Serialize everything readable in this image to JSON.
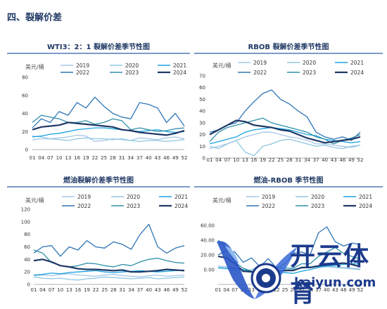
{
  "section_title": "四、裂解价差",
  "watermark": {
    "cn": "开云体育",
    "en": "kaiyun.com"
  },
  "colors": {
    "2019": "#a6c6e8",
    "2020": "#8fc8e0",
    "2021": "#1aa3e0",
    "2022": "#2e75b6",
    "2023": "#2e8fa8",
    "2024": "#1f3864",
    "axis": "#999999",
    "title": "#1f3864"
  },
  "chart_data": [
    {
      "type": "line",
      "title": "WTI3：2：1 裂解价差季节性图",
      "ylabel": "美元/桶",
      "ylim": [
        0,
        80
      ],
      "yticks": [
        0,
        20,
        40,
        60,
        80
      ],
      "xticks": [
        "01",
        "04",
        "07",
        "10",
        "13",
        "16",
        "19",
        "22",
        "25",
        "28",
        "31",
        "34",
        "37",
        "40",
        "43",
        "46",
        "49",
        "52"
      ],
      "series": [
        {
          "name": "2019",
          "values": [
            11,
            12,
            12,
            13,
            14,
            16,
            15,
            9,
            10,
            12,
            11,
            10,
            13,
            12,
            11,
            13,
            14,
            12
          ]
        },
        {
          "name": "2020",
          "values": [
            15,
            14,
            12,
            11,
            10,
            12,
            13,
            12,
            12,
            11,
            12,
            10,
            9,
            10,
            10,
            9,
            10,
            11
          ]
        },
        {
          "name": "2021",
          "values": [
            14,
            15,
            17,
            18,
            20,
            22,
            23,
            24,
            24,
            23,
            22,
            21,
            20,
            21,
            22,
            20,
            19,
            20
          ]
        },
        {
          "name": "2022",
          "values": [
            24,
            34,
            30,
            42,
            38,
            52,
            46,
            58,
            48,
            40,
            36,
            34,
            52,
            50,
            46,
            30,
            40,
            26
          ]
        },
        {
          "name": "2023",
          "values": [
            30,
            38,
            36,
            34,
            30,
            30,
            32,
            28,
            30,
            34,
            32,
            22,
            24,
            22,
            20,
            21,
            23,
            24
          ]
        },
        {
          "name": "2024",
          "values": [
            22,
            25,
            26,
            27,
            30,
            29,
            28,
            27,
            26,
            25,
            22,
            21,
            19,
            18,
            17,
            16,
            18,
            21
          ]
        }
      ]
    },
    {
      "type": "line",
      "title": "RBOB 裂解价差季节性图",
      "ylabel": "美元/桶",
      "ylim": [
        0,
        70
      ],
      "yticks": [
        0,
        10,
        20,
        30,
        40,
        50,
        60,
        70
      ],
      "xticks": [
        "01",
        "04",
        "07",
        "10",
        "13",
        "16",
        "19",
        "22",
        "25",
        "28",
        "31",
        "34",
        "37",
        "40",
        "43",
        "46",
        "49",
        "52"
      ],
      "series": [
        {
          "name": "2019",
          "values": [
            8,
            10,
            12,
            15,
            18,
            20,
            22,
            22,
            20,
            18,
            17,
            15,
            12,
            12,
            11,
            10,
            9,
            11
          ]
        },
        {
          "name": "2020",
          "values": [
            10,
            8,
            12,
            15,
            5,
            2,
            10,
            12,
            15,
            16,
            14,
            12,
            10,
            11,
            9,
            8,
            10,
            11
          ]
        },
        {
          "name": "2021",
          "values": [
            12,
            14,
            16,
            18,
            22,
            24,
            25,
            26,
            25,
            24,
            22,
            20,
            19,
            16,
            15,
            14,
            13,
            14
          ]
        },
        {
          "name": "2022",
          "values": [
            22,
            24,
            28,
            30,
            40,
            48,
            55,
            58,
            50,
            46,
            40,
            35,
            22,
            18,
            16,
            18,
            15,
            22
          ]
        },
        {
          "name": "2023",
          "values": [
            14,
            22,
            26,
            28,
            30,
            32,
            34,
            30,
            28,
            26,
            24,
            22,
            18,
            16,
            12,
            15,
            17,
            20
          ]
        },
        {
          "name": "2024",
          "values": [
            20,
            24,
            28,
            32,
            31,
            28,
            27,
            26,
            24,
            23,
            20,
            17,
            15,
            13,
            14,
            15,
            16,
            18
          ]
        }
      ]
    },
    {
      "type": "line",
      "title": "燃油裂解价差季节性图",
      "ylabel": "美元/桶",
      "ylim": [
        0,
        120
      ],
      "yticks": [
        0,
        20,
        40,
        60,
        80,
        100,
        120
      ],
      "xticks": [
        "01",
        "04",
        "07",
        "10",
        "13",
        "16",
        "19",
        "22",
        "25",
        "28",
        "31",
        "34",
        "37",
        "40",
        "43",
        "46",
        "49",
        "52"
      ],
      "series": [
        {
          "name": "2019",
          "values": [
            14,
            15,
            14,
            16,
            17,
            15,
            14,
            13,
            15,
            16,
            14,
            13,
            12,
            14,
            15,
            13,
            14,
            15
          ]
        },
        {
          "name": "2020",
          "values": [
            12,
            10,
            9,
            10,
            8,
            7,
            9,
            10,
            12,
            11,
            10,
            9,
            10,
            11,
            9,
            10,
            11,
            12
          ]
        },
        {
          "name": "2021",
          "values": [
            15,
            16,
            18,
            17,
            19,
            20,
            21,
            22,
            20,
            19,
            20,
            21,
            22,
            21,
            20,
            21,
            22,
            23
          ]
        },
        {
          "name": "2022",
          "values": [
            50,
            60,
            62,
            45,
            60,
            55,
            70,
            60,
            58,
            68,
            64,
            56,
            80,
            96,
            60,
            50,
            58,
            62
          ]
        },
        {
          "name": "2023",
          "values": [
            55,
            50,
            35,
            30,
            28,
            30,
            34,
            33,
            30,
            28,
            32,
            30,
            36,
            40,
            42,
            38,
            35,
            34
          ]
        },
        {
          "name": "2024",
          "values": [
            38,
            40,
            36,
            30,
            28,
            25,
            24,
            24,
            23,
            22,
            23,
            20,
            20,
            21,
            22,
            24,
            23,
            22
          ]
        }
      ]
    },
    {
      "type": "line",
      "title": "燃油-RBOB 季节性图",
      "ylabel": "美元/桶",
      "ylim": [
        -20,
        80
      ],
      "yticks": [
        "60.00",
        "40.00",
        "20.00",
        "0.00"
      ],
      "ytick_values": [
        60,
        40,
        20,
        0
      ],
      "xticks": [
        "01",
        "04",
        "07",
        "10",
        "13",
        "16",
        "19",
        "22",
        "25",
        "28",
        "31",
        "34",
        "37",
        "40",
        "43",
        "46",
        "49",
        "52"
      ],
      "series": [
        {
          "name": "2019",
          "values": [
            5,
            4,
            2,
            0,
            -2,
            -5,
            -4,
            -3,
            -2,
            0,
            2,
            4,
            6,
            5,
            4,
            3,
            2,
            1
          ]
        },
        {
          "name": "2020",
          "values": [
            2,
            1,
            -1,
            -3,
            0,
            4,
            -1,
            -2,
            0,
            1,
            2,
            3,
            4,
            4,
            3,
            2,
            1,
            0
          ]
        },
        {
          "name": "2021",
          "values": [
            3,
            2,
            1,
            0,
            -2,
            -4,
            -4,
            -3,
            -4,
            -5,
            -2,
            0,
            3,
            5,
            6,
            7,
            8,
            8
          ]
        },
        {
          "name": "2022",
          "values": [
            20,
            26,
            24,
            10,
            16,
            4,
            15,
            2,
            8,
            22,
            24,
            20,
            50,
            58,
            38,
            32,
            36,
            34
          ]
        },
        {
          "name": "2023",
          "values": [
            40,
            30,
            10,
            2,
            -2,
            -2,
            0,
            3,
            2,
            2,
            8,
            8,
            18,
            24,
            30,
            22,
            18,
            14
          ]
        },
        {
          "name": "2024",
          "values": [
            18,
            16,
            8,
            -2,
            -3,
            -3,
            -3,
            -2,
            -1,
            -1,
            3,
            3,
            5,
            8,
            8,
            9,
            7,
            4
          ]
        }
      ]
    }
  ]
}
